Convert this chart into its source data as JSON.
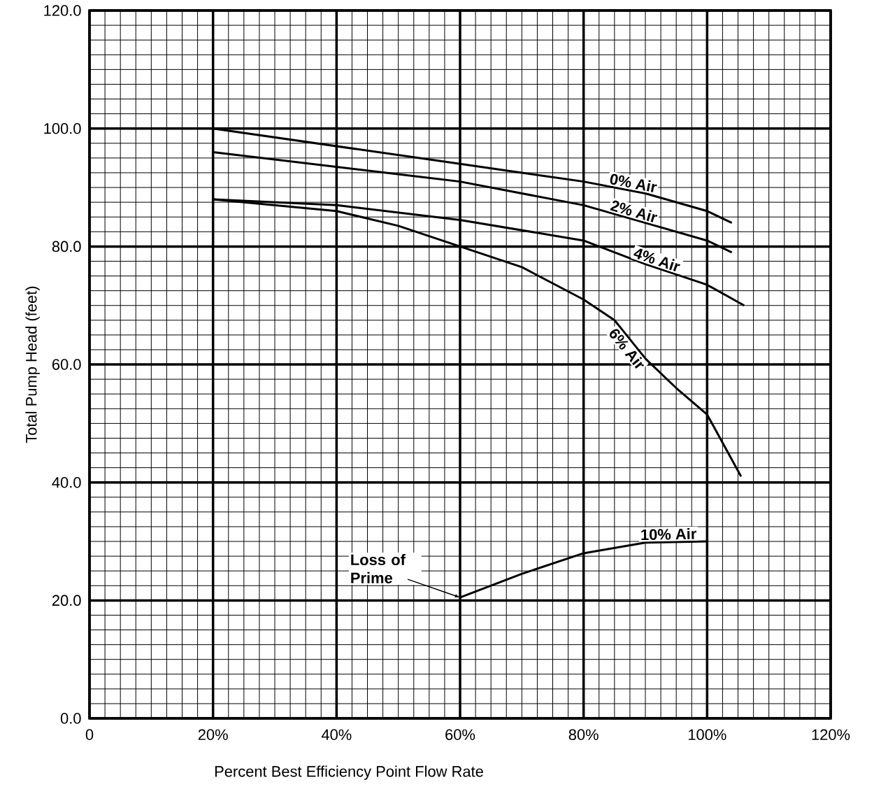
{
  "chart_data": {
    "type": "line",
    "xlabel": "Percent Best Efficiency Point Flow Rate",
    "ylabel": "Total Pump Head (feet)",
    "xlim": [
      0,
      120
    ],
    "ylim": [
      0,
      120
    ],
    "xticks": [
      0,
      {
        "value": 20,
        "label": "20%"
      },
      {
        "value": 40,
        "label": "40%"
      },
      {
        "value": 60,
        "label": "60%"
      },
      {
        "value": 80,
        "label": "80%"
      },
      {
        "value": 100,
        "label": "100%"
      },
      {
        "value": 120,
        "label": "120%"
      }
    ],
    "yticks": [
      {
        "value": 0,
        "label": "0.0"
      },
      {
        "value": 20,
        "label": "20.0"
      },
      {
        "value": 40,
        "label": "40.0"
      },
      {
        "value": 60,
        "label": "60.0"
      },
      {
        "value": 80,
        "label": "80.0"
      },
      {
        "value": 100,
        "label": "100.0"
      },
      {
        "value": 120,
        "label": "120.0"
      }
    ],
    "grid": true,
    "marker": "none",
    "line_style": "solid",
    "series": [
      {
        "name": "0% Air",
        "color": "#000000",
        "x": [
          20,
          40,
          60,
          70,
          80,
          90,
          100,
          104
        ],
        "values": [
          100,
          97,
          94,
          92.5,
          91,
          89,
          86,
          84
        ]
      },
      {
        "name": "2% Air",
        "color": "#000000",
        "x": [
          20,
          40,
          60,
          80,
          90,
          100,
          104
        ],
        "values": [
          96,
          93.5,
          91,
          87,
          84,
          81,
          79
        ]
      },
      {
        "name": "4% Air",
        "color": "#000000",
        "x": [
          20,
          40,
          60,
          80,
          90,
          100,
          106
        ],
        "values": [
          88,
          87,
          84.5,
          81,
          77,
          73.5,
          70
        ]
      },
      {
        "name": "6% Air",
        "color": "#000000",
        "x": [
          20,
          40,
          50,
          60,
          70,
          80,
          85,
          90,
          95,
          100,
          105.5
        ],
        "values": [
          88,
          86,
          83.5,
          80,
          76.5,
          71,
          67.5,
          61,
          56,
          51.5,
          41
        ]
      },
      {
        "name": "10% Air",
        "color": "#000000",
        "x": [
          60,
          70,
          80,
          90,
          100
        ],
        "values": [
          20.5,
          24.5,
          28,
          29.8,
          30
        ]
      }
    ],
    "annotations": [
      {
        "text": "Loss of Prime",
        "x": 60,
        "y": 20.5
      }
    ]
  }
}
